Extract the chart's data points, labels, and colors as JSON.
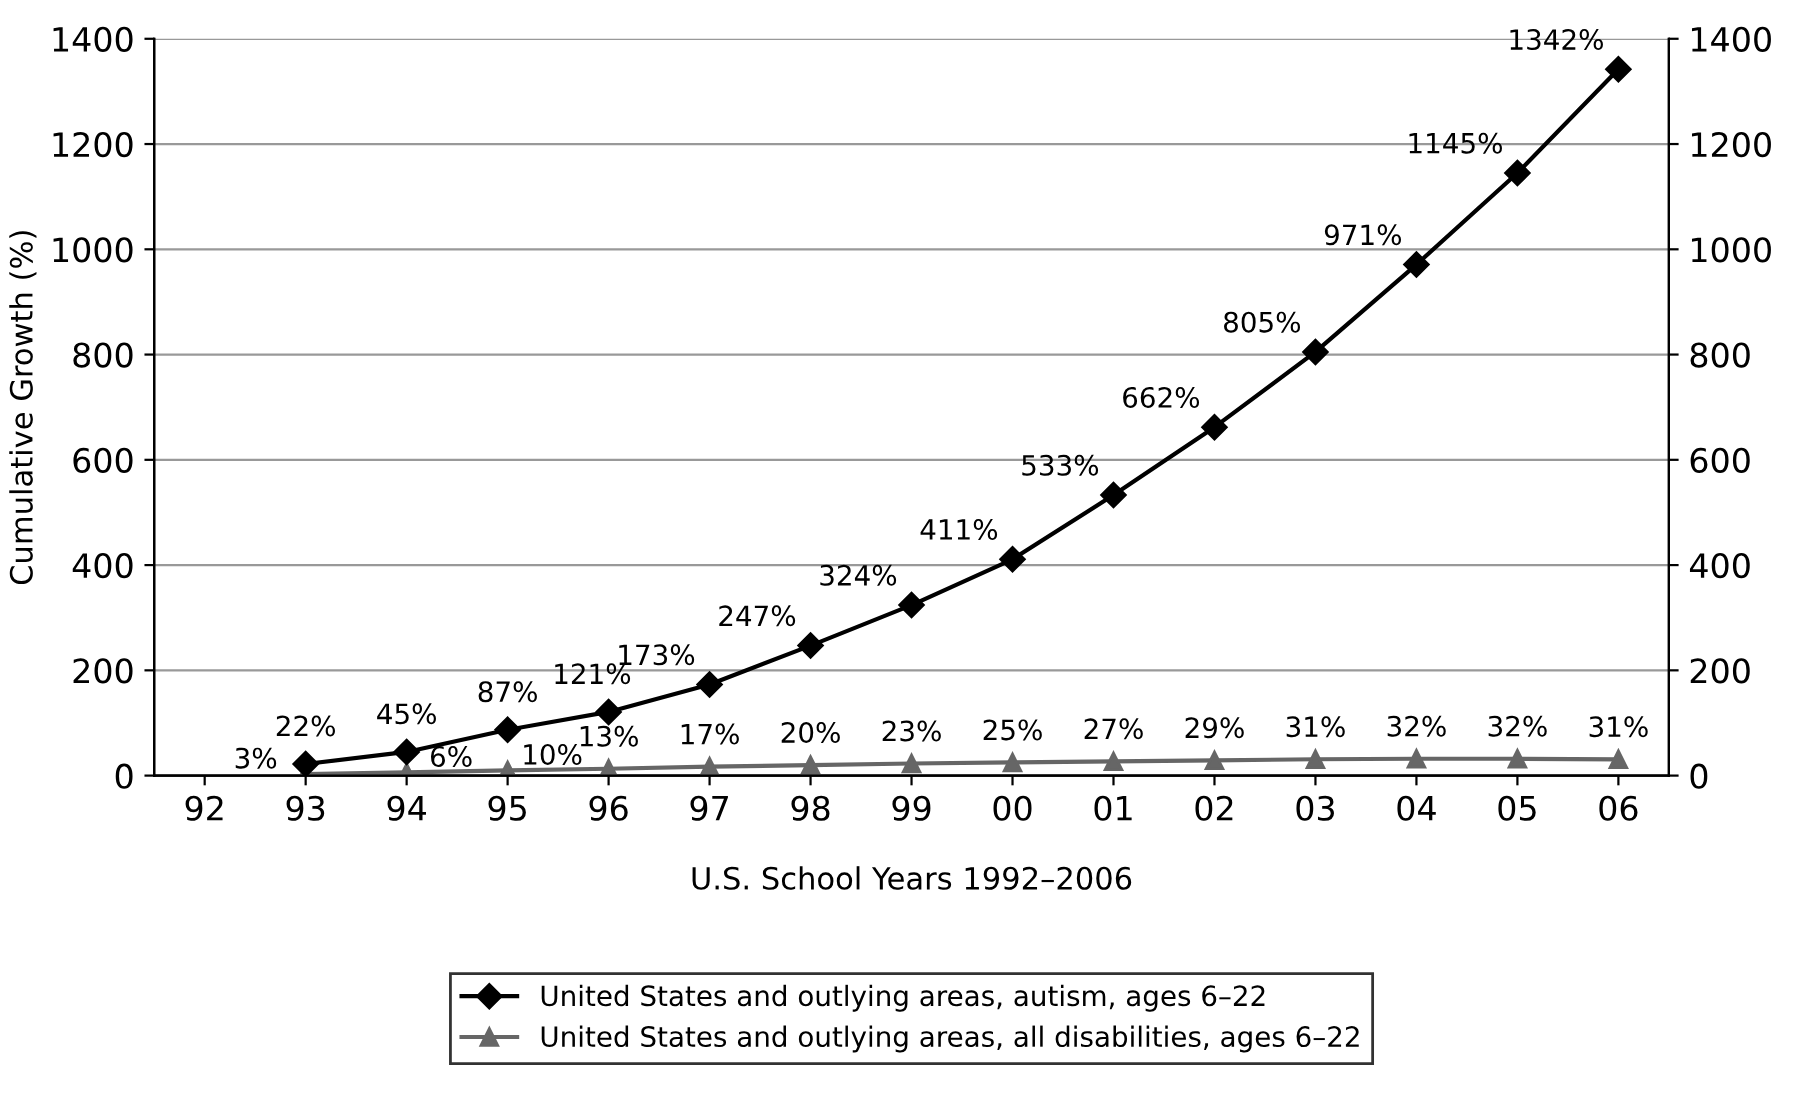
{
  "chart_data": {
    "type": "line",
    "xlabel": "U.S. School Years 1992–2006",
    "ylabel": "Cumulative Growth (%)",
    "categories": [
      "92",
      "93",
      "94",
      "95",
      "96",
      "97",
      "98",
      "99",
      "00",
      "01",
      "02",
      "03",
      "04",
      "05",
      "06"
    ],
    "series": [
      {
        "name": "United States and outlying areas, autism, ages 6–22",
        "color": "#000000",
        "marker": "diamond",
        "values": [
          null,
          22,
          45,
          87,
          121,
          173,
          247,
          324,
          411,
          533,
          662,
          805,
          971,
          1145,
          1342
        ],
        "value_labels": [
          null,
          "22%",
          "45%",
          "87%",
          "121%",
          "173%",
          "247%",
          "324%",
          "411%",
          "533%",
          "662%",
          "805%",
          "971%",
          "1145%",
          "1342%"
        ]
      },
      {
        "name": "United States and outlying areas, all disabilities, ages 6–22",
        "color": "#666666",
        "marker": "triangle",
        "values": [
          null,
          3,
          6,
          10,
          13,
          17,
          20,
          23,
          25,
          27,
          29,
          31,
          32,
          32,
          31
        ],
        "value_labels": [
          null,
          "3%",
          "6%",
          "10%",
          "13%",
          "17%",
          "20%",
          "23%",
          "25%",
          "27%",
          "29%",
          "31%",
          "32%",
          "32%",
          "31%"
        ]
      }
    ],
    "ylim": [
      0,
      1400
    ],
    "yticks": [
      0,
      200,
      400,
      600,
      800,
      1000,
      1200,
      1400
    ],
    "y2lim": [
      0,
      1400
    ],
    "y2ticks": [
      0,
      200,
      400,
      600,
      800,
      1000,
      1200,
      1400
    ],
    "grid": "y",
    "legend": "bottom"
  }
}
